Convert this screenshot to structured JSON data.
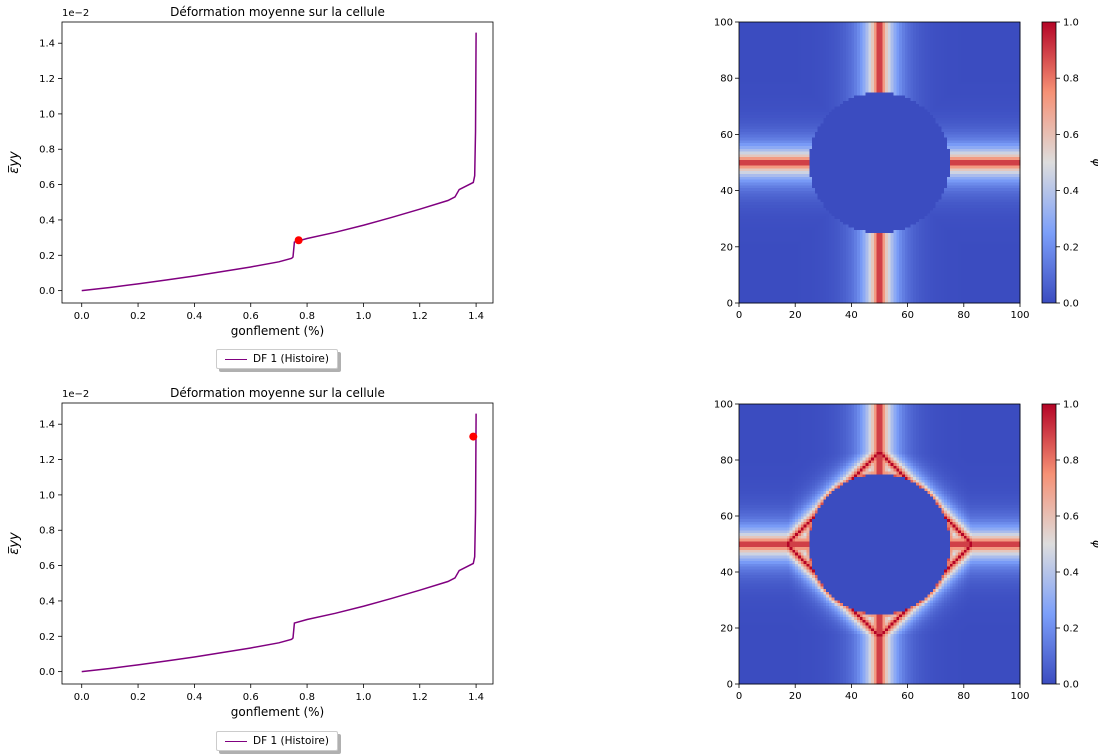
{
  "chart_data": [
    {
      "type": "line",
      "title": "Déformation moyenne sur la cellule",
      "xlabel": "gonflement (%)",
      "ylabel": "ε̅yy",
      "y_scale_label": "1e−2",
      "xlim": [
        -0.07,
        1.46
      ],
      "ylim": [
        -0.07,
        1.52
      ],
      "xticks": [
        "0.0",
        "0.2",
        "0.4",
        "0.6",
        "0.8",
        "1.0",
        "1.2",
        "1.4"
      ],
      "yticks": [
        "0.0",
        "0.2",
        "0.4",
        "0.6",
        "0.8",
        "1.0",
        "1.2",
        "1.4"
      ],
      "series": [
        {
          "name": "DF 1 (Histoire)",
          "color": "#800080",
          "x": [
            0,
            0.1,
            0.2,
            0.3,
            0.4,
            0.5,
            0.6,
            0.7,
            0.745,
            0.75,
            0.755,
            0.8,
            0.9,
            1.0,
            1.1,
            1.2,
            1.3,
            1.325,
            1.34,
            1.39,
            1.395,
            1.398,
            1.4
          ],
          "y": [
            0,
            0.018,
            0.038,
            0.06,
            0.083,
            0.108,
            0.134,
            0.163,
            0.183,
            0.19,
            0.275,
            0.295,
            0.33,
            0.37,
            0.414,
            0.461,
            0.51,
            0.53,
            0.572,
            0.612,
            0.65,
            0.9,
            1.46
          ]
        }
      ],
      "marker": {
        "x": 0.77,
        "y": 0.285,
        "color": "#ff0000"
      },
      "grid": false,
      "legend": "below"
    },
    {
      "type": "heatmap",
      "colormap": "coolwarm",
      "colorbar_label": "ϕ",
      "xlim": [
        0,
        100
      ],
      "ylim": [
        0,
        100
      ],
      "xticks": [
        "0",
        "20",
        "40",
        "60",
        "80",
        "100"
      ],
      "yticks": [
        "0",
        "20",
        "40",
        "60",
        "80",
        "100"
      ],
      "colorbar_ticks": [
        "0.0",
        "0.2",
        "0.4",
        "0.6",
        "0.8",
        "1.0"
      ],
      "vrange": [
        0,
        1
      ]
    },
    {
      "type": "line",
      "title": "Déformation moyenne sur la cellule",
      "xlabel": "gonflement (%)",
      "ylabel": "ε̅yy",
      "y_scale_label": "1e−2",
      "xlim": [
        -0.07,
        1.46
      ],
      "ylim": [
        -0.07,
        1.52
      ],
      "xticks": [
        "0.0",
        "0.2",
        "0.4",
        "0.6",
        "0.8",
        "1.0",
        "1.2",
        "1.4"
      ],
      "yticks": [
        "0.0",
        "0.2",
        "0.4",
        "0.6",
        "0.8",
        "1.0",
        "1.2",
        "1.4"
      ],
      "series": [
        {
          "name": "DF 1 (Histoire)",
          "color": "#800080",
          "x": [
            0,
            0.1,
            0.2,
            0.3,
            0.4,
            0.5,
            0.6,
            0.7,
            0.745,
            0.75,
            0.755,
            0.8,
            0.9,
            1.0,
            1.1,
            1.2,
            1.3,
            1.325,
            1.34,
            1.39,
            1.395,
            1.398,
            1.4
          ],
          "y": [
            0,
            0.018,
            0.038,
            0.06,
            0.083,
            0.108,
            0.134,
            0.163,
            0.183,
            0.19,
            0.275,
            0.295,
            0.33,
            0.37,
            0.414,
            0.461,
            0.51,
            0.53,
            0.572,
            0.612,
            0.65,
            0.9,
            1.46
          ]
        }
      ],
      "marker": {
        "x": 1.39,
        "y": 1.33,
        "color": "#ff0000"
      },
      "grid": false,
      "legend": "below"
    },
    {
      "type": "heatmap",
      "colormap": "coolwarm",
      "colorbar_label": "ϕ",
      "xlim": [
        0,
        100
      ],
      "ylim": [
        0,
        100
      ],
      "xticks": [
        "0",
        "20",
        "40",
        "60",
        "80",
        "100"
      ],
      "yticks": [
        "0",
        "20",
        "40",
        "60",
        "80",
        "100"
      ],
      "colorbar_ticks": [
        "0.0",
        "0.2",
        "0.4",
        "0.6",
        "0.8",
        "1.0"
      ],
      "vrange": [
        0,
        1
      ]
    }
  ]
}
